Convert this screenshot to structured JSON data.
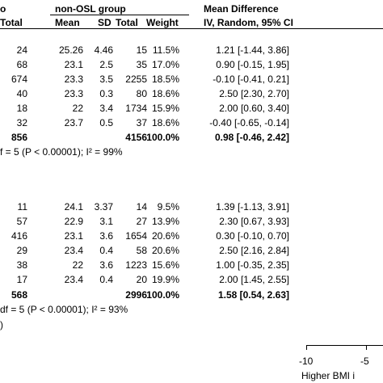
{
  "header": {
    "group_left_fragment": "o",
    "group_right": "non-OSL group",
    "effect_title": "Mean Difference",
    "col_total_left": "Total",
    "col_mean": "Mean",
    "col_sd": "SD",
    "col_total": "Total",
    "col_weight": "Weight",
    "col_ci": "IV, Random, 95% CI"
  },
  "subgroup1": {
    "rows": [
      {
        "n": "24",
        "mean": "25.26",
        "sd": "4.46",
        "total": "15",
        "weight": "11.5%",
        "ci": "1.21 [-1.44, 3.86]"
      },
      {
        "n": "68",
        "mean": "23.1",
        "sd": "2.5",
        "total": "35",
        "weight": "17.0%",
        "ci": "0.90 [-0.15, 1.95]"
      },
      {
        "n": "674",
        "mean": "23.3",
        "sd": "3.5",
        "total": "2255",
        "weight": "18.5%",
        "ci": "-0.10 [-0.41, 0.21]"
      },
      {
        "n": "40",
        "mean": "23.3",
        "sd": "0.3",
        "total": "80",
        "weight": "18.6%",
        "ci": "2.50 [2.30, 2.70]"
      },
      {
        "n": "18",
        "mean": "22",
        "sd": "3.4",
        "total": "1734",
        "weight": "15.9%",
        "ci": "2.00 [0.60, 3.40]"
      },
      {
        "n": "32",
        "mean": "23.7",
        "sd": "0.5",
        "total": "37",
        "weight": "18.6%",
        "ci": "-0.40 [-0.65, -0.14]"
      }
    ],
    "total_n": "856",
    "total_control": "4156",
    "total_weight": "100.0%",
    "total_ci": "0.98 [-0.46, 2.42]",
    "heterogeneity": "f = 5 (P < 0.00001); I² = 99%"
  },
  "subgroup2": {
    "rows": [
      {
        "n": "11",
        "mean": "24.1",
        "sd": "3.37",
        "total": "14",
        "weight": "9.5%",
        "ci": "1.39 [-1.13, 3.91]"
      },
      {
        "n": "57",
        "mean": "22.9",
        "sd": "3.1",
        "total": "27",
        "weight": "13.9%",
        "ci": "2.30 [0.67, 3.93]"
      },
      {
        "n": "416",
        "mean": "23.1",
        "sd": "3.6",
        "total": "1654",
        "weight": "20.6%",
        "ci": "0.30 [-0.10, 0.70]"
      },
      {
        "n": "29",
        "mean": "23.4",
        "sd": "0.4",
        "total": "58",
        "weight": "20.6%",
        "ci": "2.50 [2.16, 2.84]"
      },
      {
        "n": "38",
        "mean": "22",
        "sd": "3.6",
        "total": "1223",
        "weight": "15.6%",
        "ci": "1.00 [-0.35, 2.35]"
      },
      {
        "n": "17",
        "mean": "23.4",
        "sd": "0.4",
        "total": "20",
        "weight": "19.9%",
        "ci": "2.00 [1.45, 2.55]"
      }
    ],
    "total_n": "568",
    "total_control": "2996",
    "total_weight": "100.0%",
    "total_ci": "1.58 [0.54, 2.63]",
    "heterogeneity": "df = 5 (P < 0.00001); I² = 93%",
    "overall_fragment": ")"
  },
  "axis": {
    "ticks": [
      "-10",
      "-5"
    ],
    "label_fragment": "Higher BMI i"
  }
}
